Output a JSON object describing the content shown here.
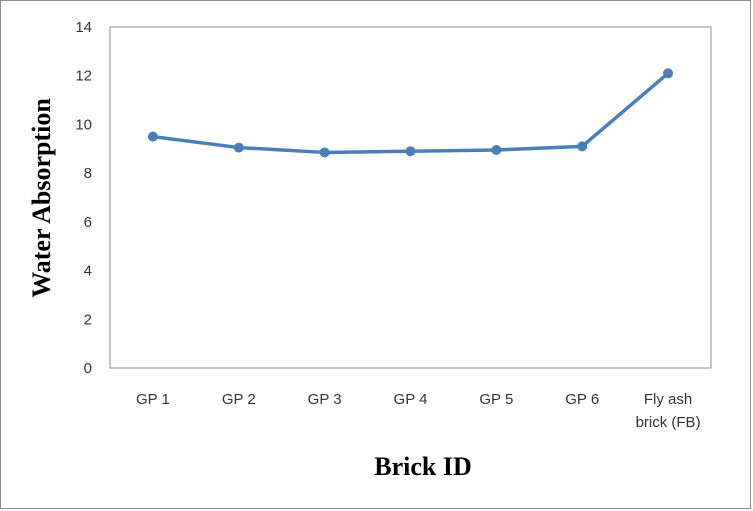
{
  "chart_data": {
    "type": "line",
    "title": "",
    "xlabel": "Brick ID",
    "ylabel": "Water Absorption",
    "categories": [
      "GP 1",
      "GP 2",
      "GP 3",
      "GP 4",
      "GP 5",
      "GP 6",
      "Fly ash brick (FB)"
    ],
    "category_lines": [
      [
        "GP 1"
      ],
      [
        "GP 2"
      ],
      [
        "GP 3"
      ],
      [
        "GP 4"
      ],
      [
        "GP 5"
      ],
      [
        "GP 6"
      ],
      [
        "Fly ash",
        "brick (FB)"
      ]
    ],
    "series": [
      {
        "values": [
          9.5,
          9.05,
          8.85,
          8.9,
          8.95,
          9.1,
          12.1
        ],
        "color": "#4a7ebb"
      }
    ],
    "ylim": [
      0,
      14
    ],
    "yticks": [
      0,
      2,
      4,
      6,
      8,
      10,
      12,
      14
    ],
    "grid": false,
    "legend": "none"
  }
}
